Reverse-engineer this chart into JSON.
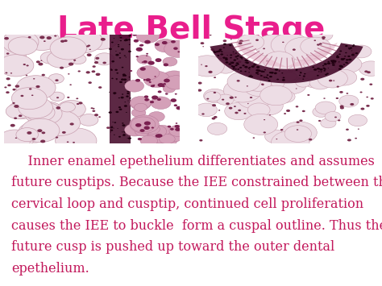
{
  "title": "Late Bell Stage",
  "title_color": "#e91e8c",
  "title_fontsize": 28,
  "title_fontstyle": "bold",
  "background_color": "#ffffff",
  "body_text_color": "#c2185b",
  "body_fontsize": 11.5,
  "lines": [
    "    Inner enamel epethelium differentiates and assumes",
    "future cusptips. Because the IEE constrained between the",
    "cervical loop and cusptip, continued cell proliferation",
    "causes the IEE to buckle  form a cuspal outline. Thus the",
    "future cusp is pushed up toward the outer dental",
    "epethelium."
  ]
}
